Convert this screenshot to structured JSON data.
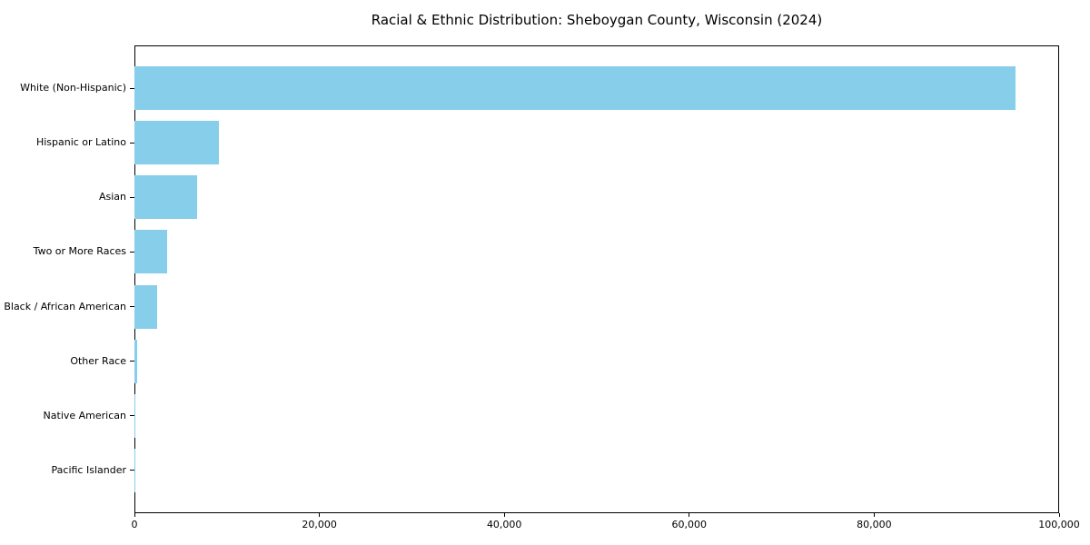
{
  "chart_data": {
    "type": "bar",
    "orientation": "horizontal",
    "title": "Racial & Ethnic Distribution: Sheboygan County, Wisconsin (2024)",
    "xlabel": "",
    "ylabel": "",
    "categories": [
      "White (Non-Hispanic)",
      "Hispanic or Latino",
      "Asian",
      "Two or More Races",
      "Black / African American",
      "Other Race",
      "Native American",
      "Pacific Islander"
    ],
    "values": [
      95300,
      9100,
      6800,
      3500,
      2500,
      300,
      100,
      40
    ],
    "xlim": [
      0,
      100000
    ],
    "xticks": {
      "values": [
        0,
        20000,
        40000,
        60000,
        80000,
        100000
      ],
      "labels": [
        "0",
        "20,000",
        "40,000",
        "60,000",
        "80,000",
        "100,000"
      ]
    },
    "bar_color": "#87CEEB",
    "text_color": "#000000",
    "grid": false,
    "legend": null,
    "frame": "full-box"
  }
}
